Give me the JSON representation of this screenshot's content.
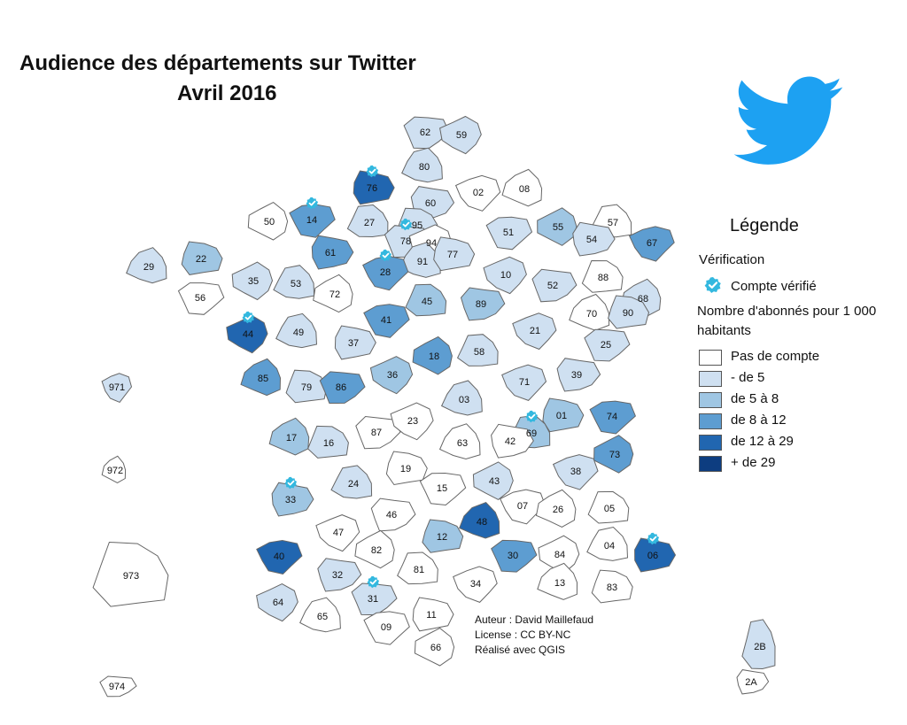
{
  "title": {
    "line1": "Audience des départements sur Twitter",
    "line2": "Avril 2016"
  },
  "legend": {
    "title": "Légende",
    "verification_title": "Vérification",
    "verified_label": "Compte vérifié",
    "abonnes_title": "Nombre d'abonnés pour 1 000 habitants",
    "classes": [
      {
        "label": "Pas de compte",
        "color": "#ffffff"
      },
      {
        "label": "- de 5",
        "color": "#cfe0f1"
      },
      {
        "label": "de 5 à 8",
        "color": "#9fc6e3"
      },
      {
        "label": "de 8 à 12",
        "color": "#5d9dd1"
      },
      {
        "label": "de 12 à 29",
        "color": "#2166b0"
      },
      {
        "label": "+ de 29",
        "color": "#0d3d80"
      }
    ]
  },
  "credits": {
    "author": "Auteur : David Maillefaud",
    "license": "License : CC BY-NC",
    "made_with": "Réalisé avec QGIS"
  },
  "icons": {
    "logo": "twitter-bird-icon",
    "verified": "verified-badge-icon",
    "logo_color": "#1da1f2",
    "verified_color": "#33b8df"
  },
  "departments": [
    {
      "code": "62",
      "class": 1,
      "verified": false
    },
    {
      "code": "59",
      "class": 1,
      "verified": false
    },
    {
      "code": "80",
      "class": 1,
      "verified": false
    },
    {
      "code": "76",
      "class": 4,
      "verified": true
    },
    {
      "code": "14",
      "class": 3,
      "verified": true
    },
    {
      "code": "50",
      "class": 0,
      "verified": false
    },
    {
      "code": "27",
      "class": 1,
      "verified": false
    },
    {
      "code": "60",
      "class": 1,
      "verified": false
    },
    {
      "code": "02",
      "class": 0,
      "verified": false
    },
    {
      "code": "08",
      "class": 0,
      "verified": false
    },
    {
      "code": "95",
      "class": 1,
      "verified": false
    },
    {
      "code": "78",
      "class": 1,
      "verified": true
    },
    {
      "code": "94",
      "class": 0,
      "verified": false
    },
    {
      "code": "91",
      "class": 1,
      "verified": false
    },
    {
      "code": "77",
      "class": 1,
      "verified": false
    },
    {
      "code": "51",
      "class": 1,
      "verified": false
    },
    {
      "code": "55",
      "class": 2,
      "verified": false
    },
    {
      "code": "57",
      "class": 0,
      "verified": false
    },
    {
      "code": "54",
      "class": 1,
      "verified": false
    },
    {
      "code": "67",
      "class": 3,
      "verified": false
    },
    {
      "code": "68",
      "class": 1,
      "verified": false
    },
    {
      "code": "88",
      "class": 0,
      "verified": false
    },
    {
      "code": "52",
      "class": 1,
      "verified": false
    },
    {
      "code": "10",
      "class": 1,
      "verified": false
    },
    {
      "code": "29",
      "class": 1,
      "verified": false
    },
    {
      "code": "22",
      "class": 2,
      "verified": false
    },
    {
      "code": "56",
      "class": 0,
      "verified": false
    },
    {
      "code": "35",
      "class": 1,
      "verified": false
    },
    {
      "code": "53",
      "class": 1,
      "verified": false
    },
    {
      "code": "61",
      "class": 3,
      "verified": false
    },
    {
      "code": "28",
      "class": 3,
      "verified": true
    },
    {
      "code": "72",
      "class": 0,
      "verified": false
    },
    {
      "code": "45",
      "class": 2,
      "verified": false
    },
    {
      "code": "89",
      "class": 2,
      "verified": false
    },
    {
      "code": "21",
      "class": 1,
      "verified": false
    },
    {
      "code": "70",
      "class": 0,
      "verified": false
    },
    {
      "code": "90",
      "class": 1,
      "verified": false
    },
    {
      "code": "25",
      "class": 1,
      "verified": false
    },
    {
      "code": "44",
      "class": 4,
      "verified": true
    },
    {
      "code": "49",
      "class": 1,
      "verified": false
    },
    {
      "code": "37",
      "class": 1,
      "verified": false
    },
    {
      "code": "41",
      "class": 3,
      "verified": false
    },
    {
      "code": "18",
      "class": 3,
      "verified": false
    },
    {
      "code": "58",
      "class": 1,
      "verified": false
    },
    {
      "code": "39",
      "class": 1,
      "verified": false
    },
    {
      "code": "71",
      "class": 1,
      "verified": false
    },
    {
      "code": "85",
      "class": 3,
      "verified": false
    },
    {
      "code": "79",
      "class": 1,
      "verified": false
    },
    {
      "code": "86",
      "class": 3,
      "verified": false
    },
    {
      "code": "36",
      "class": 2,
      "verified": false
    },
    {
      "code": "03",
      "class": 1,
      "verified": false
    },
    {
      "code": "01",
      "class": 2,
      "verified": false
    },
    {
      "code": "74",
      "class": 3,
      "verified": false
    },
    {
      "code": "73",
      "class": 3,
      "verified": false
    },
    {
      "code": "69",
      "class": 2,
      "verified": true
    },
    {
      "code": "42",
      "class": 0,
      "verified": false
    },
    {
      "code": "38",
      "class": 1,
      "verified": false
    },
    {
      "code": "17",
      "class": 2,
      "verified": false
    },
    {
      "code": "16",
      "class": 1,
      "verified": false
    },
    {
      "code": "87",
      "class": 0,
      "verified": false
    },
    {
      "code": "23",
      "class": 0,
      "verified": false
    },
    {
      "code": "63",
      "class": 0,
      "verified": false
    },
    {
      "code": "19",
      "class": 0,
      "verified": false
    },
    {
      "code": "15",
      "class": 0,
      "verified": false
    },
    {
      "code": "43",
      "class": 1,
      "verified": false
    },
    {
      "code": "24",
      "class": 1,
      "verified": false
    },
    {
      "code": "33",
      "class": 2,
      "verified": true
    },
    {
      "code": "07",
      "class": 0,
      "verified": false
    },
    {
      "code": "26",
      "class": 0,
      "verified": false
    },
    {
      "code": "05",
      "class": 0,
      "verified": false
    },
    {
      "code": "46",
      "class": 0,
      "verified": false
    },
    {
      "code": "47",
      "class": 0,
      "verified": false
    },
    {
      "code": "48",
      "class": 4,
      "verified": false
    },
    {
      "code": "12",
      "class": 2,
      "verified": false
    },
    {
      "code": "30",
      "class": 3,
      "verified": false
    },
    {
      "code": "84",
      "class": 0,
      "verified": false
    },
    {
      "code": "04",
      "class": 0,
      "verified": false
    },
    {
      "code": "06",
      "class": 4,
      "verified": true
    },
    {
      "code": "40",
      "class": 4,
      "verified": false
    },
    {
      "code": "82",
      "class": 0,
      "verified": false
    },
    {
      "code": "81",
      "class": 0,
      "verified": false
    },
    {
      "code": "32",
      "class": 1,
      "verified": false
    },
    {
      "code": "34",
      "class": 0,
      "verified": false
    },
    {
      "code": "13",
      "class": 0,
      "verified": false
    },
    {
      "code": "83",
      "class": 0,
      "verified": false
    },
    {
      "code": "31",
      "class": 1,
      "verified": true
    },
    {
      "code": "64",
      "class": 1,
      "verified": false
    },
    {
      "code": "65",
      "class": 0,
      "verified": false
    },
    {
      "code": "11",
      "class": 0,
      "verified": false
    },
    {
      "code": "09",
      "class": 0,
      "verified": false
    },
    {
      "code": "66",
      "class": 0,
      "verified": false
    },
    {
      "code": "2B",
      "class": 1,
      "verified": false
    },
    {
      "code": "2A",
      "class": 0,
      "verified": false
    },
    {
      "code": "971",
      "class": 1,
      "verified": false
    },
    {
      "code": "972",
      "class": 0,
      "verified": false
    },
    {
      "code": "973",
      "class": 0,
      "verified": false
    },
    {
      "code": "974",
      "class": 0,
      "verified": false
    }
  ]
}
